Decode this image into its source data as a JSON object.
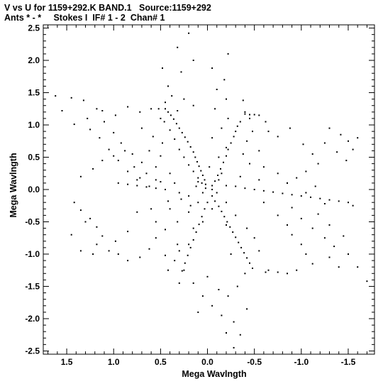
{
  "chart_data": {
    "type": "scatter",
    "title": "V vs U for 1159+292.K BAND.1   Source:1159+292",
    "subtitle": "Ants * - *     Stokes I  IF# 1 - 2  Chan# 1",
    "xlabel": "Mega Wavlngth",
    "ylabel": "Mega Wavlngth",
    "xlim": [
      1.75,
      -1.78
    ],
    "ylim": [
      -2.55,
      2.55
    ],
    "x_ticks": [
      1.5,
      1.0,
      0.5,
      0.0,
      -0.5,
      -1.0,
      -1.5
    ],
    "x_tick_labels": [
      "1.5",
      "1.0",
      "0.5",
      "0.0",
      "-0.5",
      "-1.0",
      "-1.5"
    ],
    "y_ticks": [
      2.5,
      2.0,
      1.5,
      1.0,
      0.5,
      0.0,
      -0.5,
      -1.0,
      -1.5,
      -2.0,
      -2.5
    ],
    "y_tick_labels": [
      "2.5",
      "2.0",
      "1.5",
      "1.0",
      "0.5",
      "0.0",
      "-0.5",
      "-1.0",
      "-1.5",
      "-2.0",
      "-2.5"
    ],
    "point_color": "#000000",
    "grid": false,
    "points": [
      [
        1.62,
        1.45
      ],
      [
        1.55,
        1.22
      ],
      [
        1.45,
        1.42
      ],
      [
        1.42,
        1.01
      ],
      [
        1.32,
        1.38
      ],
      [
        1.28,
        1.1
      ],
      [
        1.25,
        0.93
      ],
      [
        1.18,
        1.25
      ],
      [
        1.15,
        0.8
      ],
      [
        1.1,
        1.05
      ],
      [
        1.05,
        0.62
      ],
      [
        1.0,
        0.88
      ],
      [
        0.95,
        0.45
      ],
      [
        0.92,
        0.72
      ],
      [
        0.85,
        0.28
      ],
      [
        0.8,
        0.55
      ],
      [
        0.75,
        0.15
      ],
      [
        0.7,
        0.42
      ],
      [
        0.62,
        0.05
      ],
      [
        1.12,
        1.22
      ],
      [
        0.98,
        1.15
      ],
      [
        0.85,
        1.28
      ],
      [
        0.72,
        1.2
      ],
      [
        0.6,
        1.25
      ],
      [
        0.5,
        1.1
      ],
      [
        0.45,
        1.35
      ],
      [
        0.32,
        1.22
      ],
      [
        0.25,
        1.4
      ],
      [
        0.15,
        1.3
      ],
      [
        0.2,
        2.42
      ],
      [
        0.32,
        2.2
      ],
      [
        0.15,
        2.0
      ],
      [
        0.28,
        1.82
      ],
      [
        0.42,
        1.6
      ],
      [
        0.48,
        1.88
      ],
      [
        0.38,
        1.45
      ],
      [
        0.52,
        1.25
      ],
      [
        0.46,
        1.05
      ],
      [
        0.4,
        0.92
      ],
      [
        0.35,
        0.78
      ],
      [
        0.3,
        0.62
      ],
      [
        0.25,
        0.5
      ],
      [
        0.2,
        0.38
      ],
      [
        0.15,
        0.28
      ],
      [
        0.1,
        0.18
      ],
      [
        0.06,
        0.1
      ],
      [
        0.45,
        1.25
      ],
      [
        0.42,
        1.2
      ],
      [
        0.39,
        1.15
      ],
      [
        0.36,
        1.09
      ],
      [
        0.33,
        1.02
      ],
      [
        0.3,
        0.95
      ],
      [
        0.27,
        0.88
      ],
      [
        0.24,
        0.81
      ],
      [
        0.21,
        0.74
      ],
      [
        0.18,
        0.66
      ],
      [
        0.15,
        0.58
      ],
      [
        0.13,
        0.5
      ],
      [
        0.11,
        0.43
      ],
      [
        0.09,
        0.36
      ],
      [
        0.07,
        0.29
      ],
      [
        0.05,
        0.22
      ],
      [
        0.03,
        0.15
      ],
      [
        0.02,
        0.08
      ],
      [
        -0.22,
        2.1
      ],
      [
        -0.05,
        1.88
      ],
      [
        -0.18,
        1.7
      ],
      [
        -0.1,
        1.55
      ],
      [
        -0.2,
        1.4
      ],
      [
        -0.08,
        1.25
      ],
      [
        -0.22,
        1.1
      ],
      [
        -0.15,
        0.95
      ],
      [
        -0.05,
        0.8
      ],
      [
        -0.2,
        0.65
      ],
      [
        -0.12,
        0.5
      ],
      [
        -0.02,
        0.35
      ],
      [
        -0.15,
        0.25
      ],
      [
        -0.38,
        1.38
      ],
      [
        -0.4,
        1.2
      ],
      [
        -0.45,
        1.1
      ],
      [
        -0.35,
        1.05
      ],
      [
        -0.32,
        0.98
      ],
      [
        -0.3,
        0.9
      ],
      [
        -0.28,
        0.82
      ],
      [
        -0.25,
        0.72
      ],
      [
        -0.22,
        0.62
      ],
      [
        -0.2,
        0.52
      ],
      [
        -0.17,
        0.42
      ],
      [
        -0.14,
        0.32
      ],
      [
        -0.11,
        0.22
      ],
      [
        -0.08,
        0.13
      ],
      [
        -0.05,
        0.06
      ],
      [
        -0.4,
        1.17
      ],
      [
        -0.45,
        1.16
      ],
      [
        -0.5,
        1.16
      ],
      [
        -0.55,
        1.15
      ],
      [
        -0.62,
        1.05
      ],
      [
        -0.65,
        0.9
      ],
      [
        -0.48,
        0.9
      ],
      [
        -0.42,
        0.75
      ],
      [
        -0.55,
        0.6
      ],
      [
        -0.38,
        0.55
      ],
      [
        -0.45,
        0.4
      ],
      [
        -0.6,
        0.35
      ],
      [
        -0.75,
        0.82
      ],
      [
        -0.88,
        0.95
      ],
      [
        -1.02,
        0.7
      ],
      [
        -1.12,
        0.55
      ],
      [
        -1.18,
        0.4
      ],
      [
        -1.05,
        0.28
      ],
      [
        -0.95,
        0.18
      ],
      [
        -0.85,
        0.1
      ],
      [
        -1.25,
        0.72
      ],
      [
        -1.38,
        0.58
      ],
      [
        -1.48,
        0.45
      ],
      [
        -1.55,
        0.62
      ],
      [
        -1.42,
        0.85
      ],
      [
        -1.3,
        0.95
      ],
      [
        -1.5,
        0.75
      ],
      [
        -1.6,
        0.8
      ],
      [
        -0.2,
        0.06
      ],
      [
        -0.3,
        0.05
      ],
      [
        -0.4,
        0.02
      ],
      [
        -0.5,
        0.0
      ],
      [
        -0.6,
        -0.02
      ],
      [
        -0.7,
        -0.04
      ],
      [
        -0.8,
        -0.06
      ],
      [
        -0.9,
        -0.08
      ],
      [
        -1.0,
        -0.1
      ],
      [
        -1.1,
        -0.12
      ],
      [
        -1.2,
        -0.14
      ],
      [
        -1.3,
        -0.16
      ],
      [
        -1.4,
        -0.18
      ],
      [
        -1.5,
        -0.2
      ],
      [
        -1.55,
        -0.25
      ],
      [
        -0.35,
        0.2
      ],
      [
        -0.55,
        0.15
      ],
      [
        -0.75,
        0.25
      ],
      [
        -0.85,
        0.1
      ],
      [
        -1.05,
        -0.05
      ],
      [
        -1.15,
        0.05
      ],
      [
        -1.25,
        -0.22
      ],
      [
        -0.9,
        -0.28
      ],
      [
        -1.0,
        -0.45
      ],
      [
        -1.12,
        -0.6
      ],
      [
        -1.25,
        -0.75
      ],
      [
        -1.35,
        -0.88
      ],
      [
        -1.5,
        -1.0
      ],
      [
        -1.6,
        -1.2
      ],
      [
        -1.7,
        -1.42
      ],
      [
        -1.45,
        -0.72
      ],
      [
        -1.3,
        -0.55
      ],
      [
        -1.18,
        -0.38
      ],
      [
        -1.4,
        -1.2
      ],
      [
        -1.3,
        -1.05
      ],
      [
        -0.6,
        -0.2
      ],
      [
        -0.75,
        -0.4
      ],
      [
        -0.85,
        -0.55
      ],
      [
        -0.9,
        -0.7
      ],
      [
        -1.0,
        -0.85
      ],
      [
        -1.05,
        -1.0
      ],
      [
        -1.12,
        -1.15
      ],
      [
        -0.95,
        -1.25
      ],
      [
        -0.85,
        -1.3
      ],
      [
        -0.75,
        -1.28
      ],
      [
        -0.65,
        -1.25
      ],
      [
        -0.62,
        -1.28
      ],
      [
        -0.05,
        -0.1
      ],
      [
        -0.08,
        -0.18
      ],
      [
        -0.12,
        -0.26
      ],
      [
        -0.15,
        -0.34
      ],
      [
        -0.18,
        -0.42
      ],
      [
        -0.21,
        -0.5
      ],
      [
        -0.24,
        -0.58
      ],
      [
        -0.27,
        -0.66
      ],
      [
        -0.3,
        -0.74
      ],
      [
        -0.33,
        -0.82
      ],
      [
        -0.36,
        -0.9
      ],
      [
        -0.39,
        -0.98
      ],
      [
        -0.42,
        -1.06
      ],
      [
        -0.45,
        -1.14
      ],
      [
        -0.48,
        -1.22
      ],
      [
        -0.05,
        -0.3
      ],
      [
        -0.2,
        -0.55
      ],
      [
        -0.3,
        -0.4
      ],
      [
        -0.42,
        -0.6
      ],
      [
        -0.5,
        -0.75
      ],
      [
        -0.55,
        -0.95
      ],
      [
        -0.25,
        -1.0
      ],
      [
        -0.4,
        -1.3
      ],
      [
        -0.32,
        -1.5
      ],
      [
        -0.22,
        -1.65
      ],
      [
        -0.42,
        -1.85
      ],
      [
        -0.28,
        -2.05
      ],
      [
        -0.35,
        -2.25
      ],
      [
        -0.2,
        -2.22
      ],
      [
        -0.28,
        -2.45
      ],
      [
        -0.15,
        -1.95
      ],
      [
        0.0,
        -0.2
      ],
      [
        0.03,
        -0.3
      ],
      [
        0.06,
        -0.42
      ],
      [
        0.09,
        -0.54
      ],
      [
        0.12,
        -0.66
      ],
      [
        0.15,
        -0.78
      ],
      [
        0.18,
        -0.9
      ],
      [
        0.21,
        -1.02
      ],
      [
        0.24,
        -1.14
      ],
      [
        0.27,
        -1.26
      ],
      [
        0.05,
        -0.5
      ],
      [
        0.15,
        -0.6
      ],
      [
        0.2,
        -0.85
      ],
      [
        0.3,
        -0.95
      ],
      [
        0.35,
        -1.1
      ],
      [
        0.25,
        -1.25
      ],
      [
        0.42,
        -1.25
      ],
      [
        0.3,
        -1.45
      ],
      [
        0.15,
        -1.45
      ],
      [
        0.05,
        -1.65
      ],
      [
        -0.05,
        -1.8
      ],
      [
        0.1,
        -1.9
      ],
      [
        -0.12,
        -1.55
      ],
      [
        0.0,
        -1.35
      ],
      [
        0.1,
        -0.2
      ],
      [
        0.2,
        -0.35
      ],
      [
        0.32,
        -0.5
      ],
      [
        0.45,
        -0.62
      ],
      [
        0.55,
        -0.75
      ],
      [
        0.62,
        -0.92
      ],
      [
        0.72,
        -1.05
      ],
      [
        0.85,
        -1.1
      ],
      [
        0.95,
        -1.0
      ],
      [
        1.05,
        -0.95
      ],
      [
        0.98,
        -0.8
      ],
      [
        1.12,
        -0.72
      ],
      [
        1.18,
        -0.58
      ],
      [
        1.25,
        -0.45
      ],
      [
        1.35,
        -0.32
      ],
      [
        1.42,
        -0.2
      ],
      [
        1.35,
        -0.95
      ],
      [
        1.22,
        -1.0
      ],
      [
        1.18,
        -0.85
      ],
      [
        1.45,
        -0.7
      ],
      [
        1.3,
        -0.5
      ],
      [
        0.75,
        -0.35
      ],
      [
        0.6,
        -0.3
      ],
      [
        0.55,
        -0.5
      ],
      [
        0.85,
        -0.65
      ],
      [
        0.4,
        -0.3
      ],
      [
        0.32,
        -0.85
      ],
      [
        0.45,
        -1.02
      ],
      [
        0.2,
        -0.1
      ],
      [
        0.3,
        -0.05
      ],
      [
        0.45,
        0.0
      ],
      [
        0.55,
        0.02
      ],
      [
        0.65,
        0.04
      ],
      [
        0.75,
        0.06
      ],
      [
        0.85,
        0.08
      ],
      [
        0.95,
        0.1
      ],
      [
        0.72,
        0.18
      ],
      [
        0.5,
        0.12
      ],
      [
        0.35,
        0.1
      ],
      [
        0.28,
        -0.15
      ],
      [
        0.42,
        -0.18
      ],
      [
        1.35,
        0.2
      ],
      [
        1.22,
        0.32
      ],
      [
        1.12,
        0.45
      ],
      [
        1.0,
        0.52
      ],
      [
        0.88,
        0.6
      ],
      [
        0.78,
        0.35
      ],
      [
        0.65,
        0.25
      ],
      [
        0.55,
        0.15
      ],
      [
        0.62,
        0.6
      ],
      [
        0.5,
        0.52
      ],
      [
        0.48,
        0.72
      ],
      [
        0.58,
        0.82
      ],
      [
        0.7,
        0.95
      ],
      [
        0.55,
        0.35
      ],
      [
        0.4,
        0.25
      ],
      [
        0.12,
        0.05
      ],
      [
        -0.05,
        0.0
      ],
      [
        0.05,
        -0.05
      ],
      [
        -0.1,
        -0.05
      ],
      [
        0.02,
        0.02
      ],
      [
        0.1,
        0.12
      ],
      [
        -0.12,
        0.15
      ],
      [
        0.18,
        -0.25
      ],
      [
        -0.2,
        -0.2
      ]
    ]
  }
}
